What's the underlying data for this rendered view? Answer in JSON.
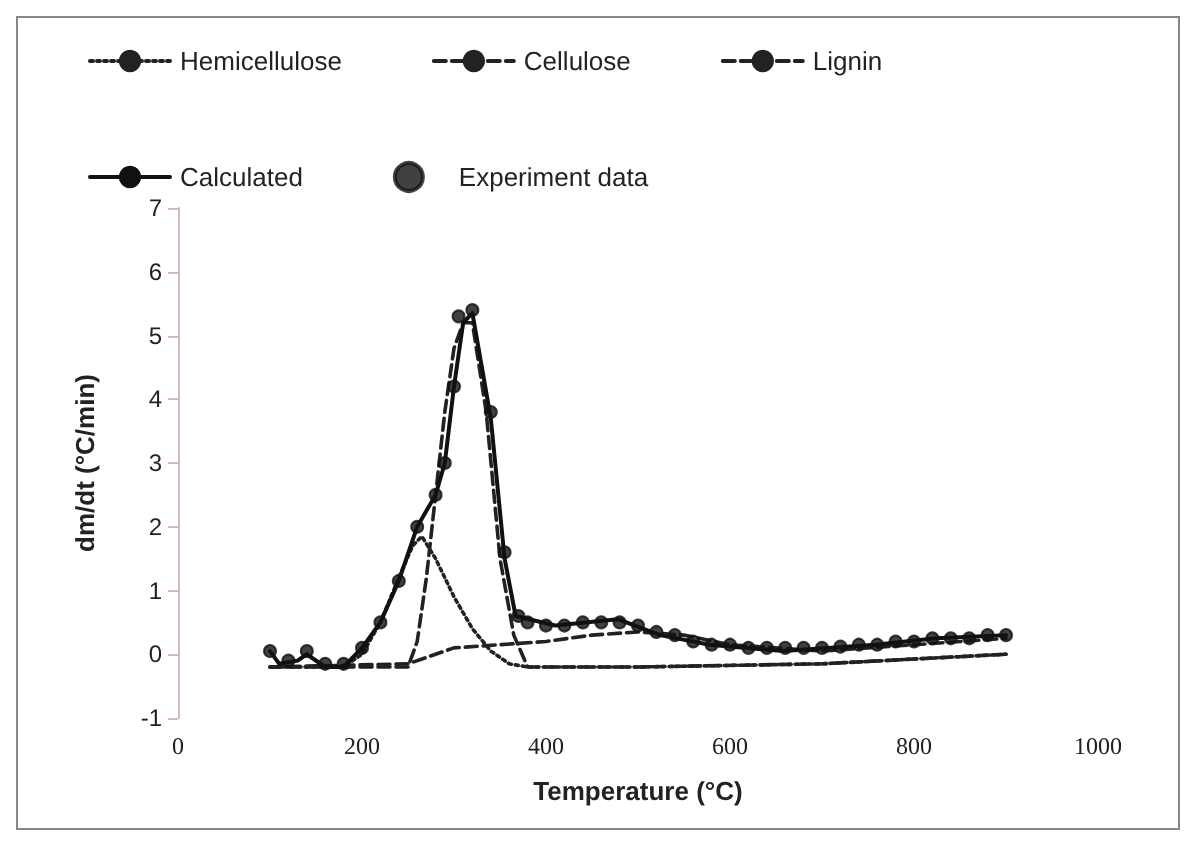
{
  "chart_data": {
    "type": "line",
    "xlabel": "Temperature (°C)",
    "ylabel": "dm/dt (°C/min)",
    "xlim": [
      0,
      1000
    ],
    "ylim": [
      -1,
      7
    ],
    "xticks": [
      0,
      200,
      400,
      600,
      800,
      1000
    ],
    "yticks": [
      -1,
      0,
      1,
      2,
      3,
      4,
      5,
      6,
      7
    ],
    "grid": false,
    "legend": "top",
    "marker": "none",
    "series": [
      {
        "name": "Hemicellulose",
        "color": "#222222",
        "line_style": "dotted",
        "x": [
          100,
          180,
          200,
          220,
          240,
          255,
          265,
          280,
          300,
          320,
          340,
          360,
          380,
          500,
          700,
          900
        ],
        "values": [
          -0.2,
          -0.2,
          0,
          0.5,
          1.2,
          1.7,
          1.85,
          1.5,
          0.9,
          0.4,
          0.05,
          -0.15,
          -0.2,
          -0.2,
          -0.15,
          0
        ]
      },
      {
        "name": "Cellulose",
        "color": "#222222",
        "line_style": "dashed",
        "x": [
          100,
          250,
          260,
          270,
          280,
          290,
          300,
          310,
          320,
          335,
          350,
          365,
          380,
          500,
          700,
          900
        ],
        "values": [
          -0.2,
          -0.2,
          0.2,
          1.2,
          2.5,
          3.8,
          4.8,
          5.2,
          5.2,
          3.8,
          1.5,
          0.3,
          -0.2,
          -0.2,
          -0.15,
          0
        ]
      },
      {
        "name": "Lignin",
        "color": "#222222",
        "line_style": "dashed",
        "x": [
          100,
          250,
          300,
          350,
          400,
          450,
          500,
          550,
          600,
          700,
          800,
          900
        ],
        "values": [
          -0.2,
          -0.15,
          0.1,
          0.15,
          0.2,
          0.3,
          0.35,
          0.3,
          0.15,
          0.05,
          0.15,
          0.25
        ]
      },
      {
        "name": "Calculated",
        "color": "#111111",
        "line_style": "solid",
        "x": [
          100,
          110,
          130,
          140,
          160,
          180,
          200,
          220,
          240,
          260,
          280,
          290,
          300,
          310,
          320,
          340,
          355,
          367,
          410,
          478,
          524,
          578,
          658,
          758,
          824,
          900
        ],
        "values": [
          0.05,
          -0.15,
          -0.1,
          0,
          -0.2,
          -0.2,
          0.1,
          0.5,
          1.15,
          2.0,
          2.5,
          3.0,
          4.2,
          5.2,
          5.35,
          3.7,
          1.5,
          0.6,
          0.45,
          0.55,
          0.3,
          0.15,
          0.05,
          0.15,
          0.25,
          0.3
        ]
      },
      {
        "name": "Experiment data",
        "type": "scatter",
        "marker": "circle",
        "color": "#111111",
        "x": [
          100,
          120,
          140,
          160,
          180,
          200,
          220,
          240,
          260,
          280,
          290,
          300,
          305,
          320,
          340,
          355,
          370,
          380,
          400,
          420,
          440,
          460,
          480,
          500,
          520,
          540,
          560,
          580,
          600,
          620,
          640,
          660,
          680,
          700,
          720,
          740,
          760,
          780,
          800,
          820,
          840,
          860,
          880,
          900
        ],
        "values": [
          0.05,
          -0.1,
          0.05,
          -0.15,
          -0.15,
          0.1,
          0.5,
          1.15,
          2.0,
          2.5,
          3.0,
          4.2,
          5.3,
          5.4,
          3.8,
          1.6,
          0.6,
          0.5,
          0.45,
          0.45,
          0.5,
          0.5,
          0.5,
          0.45,
          0.35,
          0.3,
          0.2,
          0.15,
          0.15,
          0.1,
          0.1,
          0.1,
          0.1,
          0.1,
          0.12,
          0.15,
          0.15,
          0.2,
          0.2,
          0.25,
          0.25,
          0.25,
          0.3,
          0.3
        ]
      }
    ]
  }
}
